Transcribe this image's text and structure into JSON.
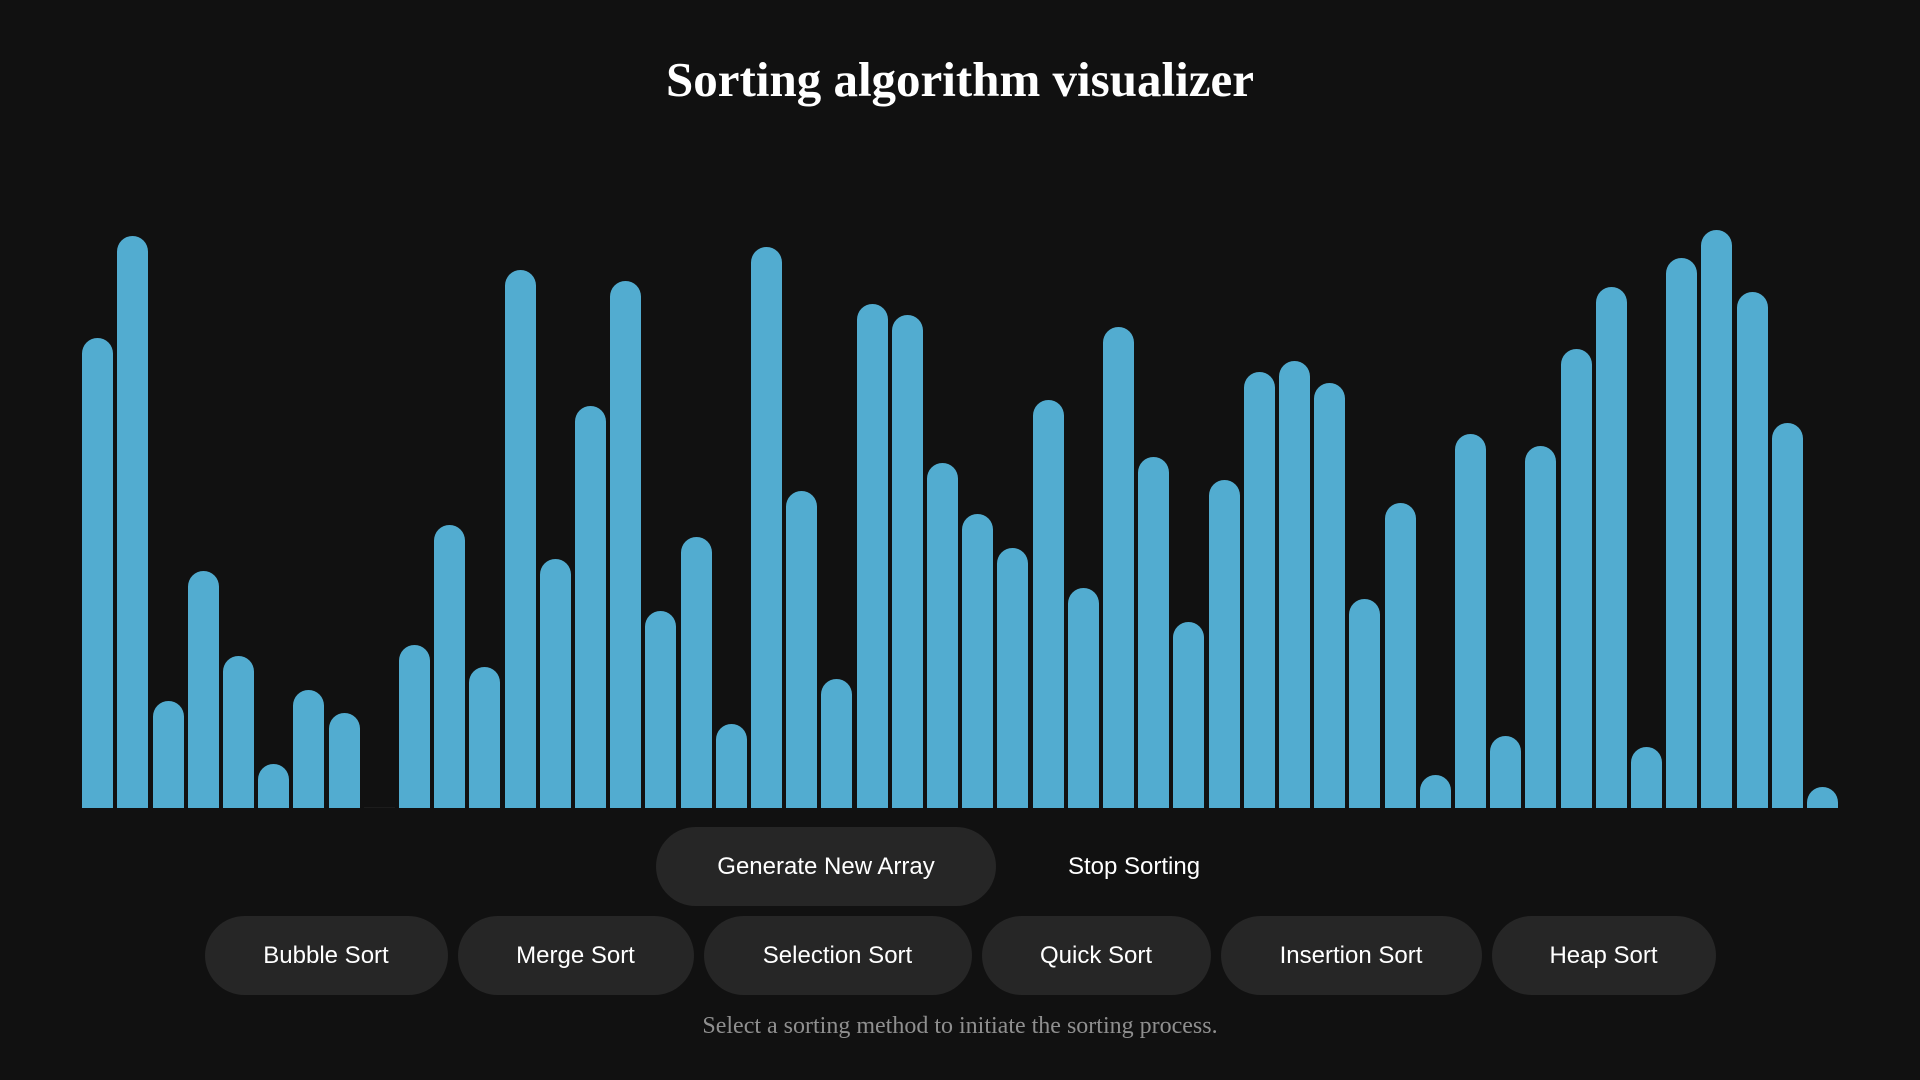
{
  "title": "Sorting algorithm visualizer",
  "array": {
    "max_value": 100,
    "values": [
      81,
      99,
      17,
      40,
      25,
      6,
      19,
      15,
      0,
      27,
      48,
      23,
      93,
      42,
      69,
      91,
      33,
      46,
      13,
      97,
      54,
      21,
      87,
      85,
      59,
      50,
      44,
      70,
      37,
      83,
      60,
      31,
      56,
      75,
      77,
      73,
      35,
      52,
      4,
      64,
      11,
      62,
      79,
      90,
      9,
      95,
      100,
      89,
      66,
      2
    ],
    "bar_color": "#52acd0"
  },
  "controls": {
    "generate_label": "Generate New Array",
    "stop_label": "Stop Sorting"
  },
  "algorithms": [
    {
      "name": "Bubble Sort"
    },
    {
      "name": "Merge Sort"
    },
    {
      "name": "Selection Sort"
    },
    {
      "name": "Quick Sort"
    },
    {
      "name": "Insertion Sort"
    },
    {
      "name": "Heap Sort"
    }
  ],
  "status_text": "Select a sorting method to initiate the sorting process.",
  "colors": {
    "background": "#111111",
    "button_bg": "#262626",
    "bar": "#52acd0",
    "status_text": "#8f8f8f"
  }
}
